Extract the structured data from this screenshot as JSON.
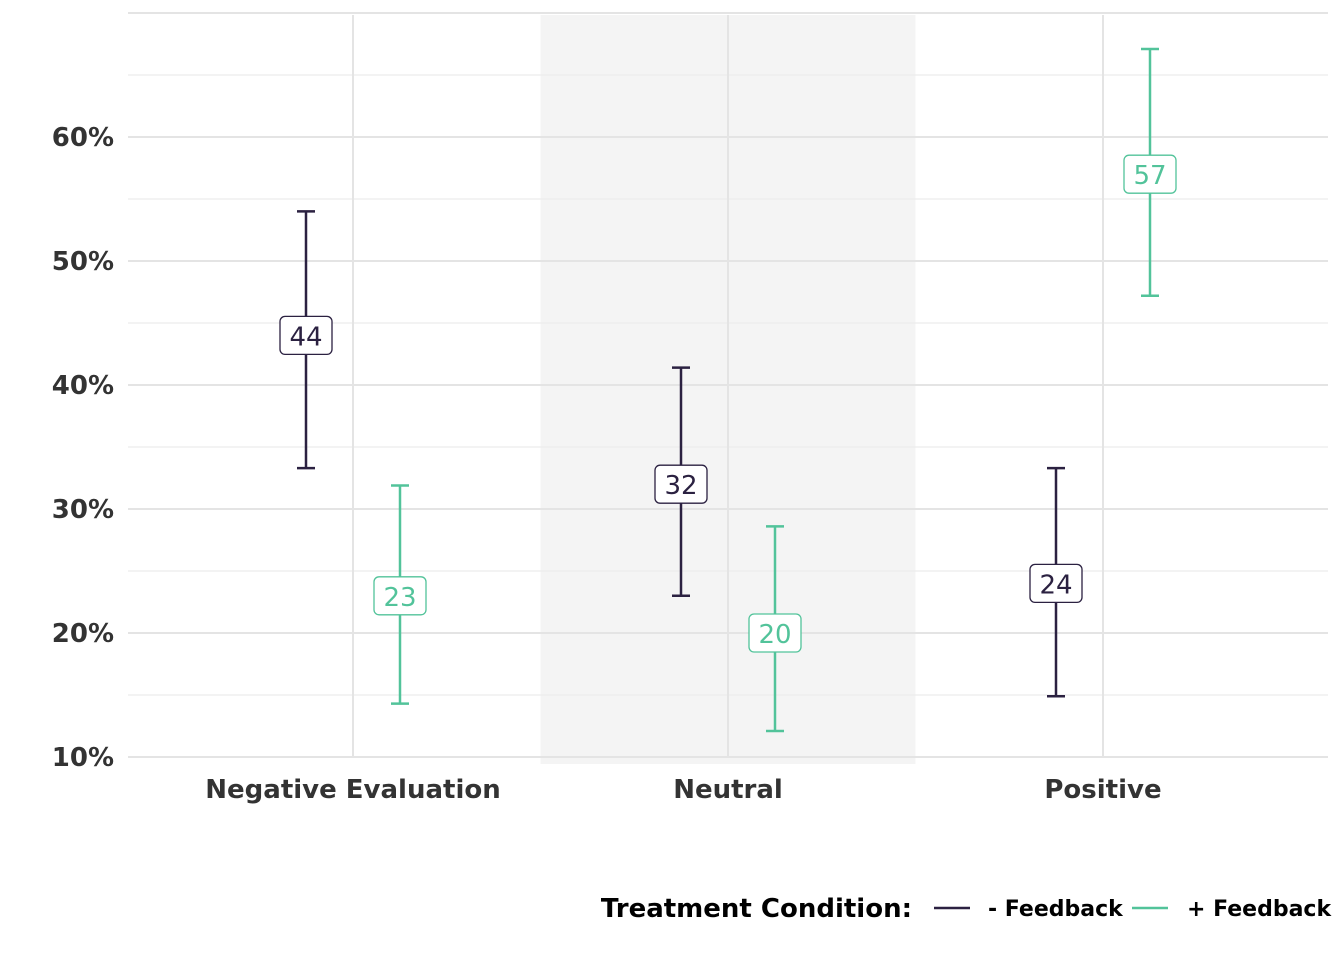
{
  "chart_data": {
    "type": "errorbar",
    "categories": [
      "Negative Evaluation",
      "Neutral",
      "Positive"
    ],
    "ylim": [
      10,
      70
    ],
    "yticks": [
      10,
      20,
      30,
      40,
      50,
      60
    ],
    "ytick_labels": [
      "10%",
      "20%",
      "30%",
      "40%",
      "50%",
      "60%"
    ],
    "xlabel": "",
    "ylabel": "",
    "grid": true,
    "highlight_category": "Neutral",
    "legend": {
      "title": "Treatment Condition:",
      "placement": "bottom-right"
    },
    "series": [
      {
        "name": "- Feedback",
        "color": "#2b2141",
        "values": [
          44,
          32,
          24
        ],
        "lower": [
          33.3,
          23.0,
          14.9
        ],
        "upper": [
          54.0,
          41.4,
          33.3
        ],
        "labels": [
          "44",
          "32",
          "24"
        ]
      },
      {
        "name": "+ Feedback",
        "color": "#52c39a",
        "values": [
          23,
          20,
          57
        ],
        "lower": [
          14.3,
          12.1,
          47.2
        ],
        "upper": [
          31.9,
          28.6,
          67.1
        ],
        "labels": [
          "23",
          "20",
          "57"
        ]
      }
    ]
  }
}
